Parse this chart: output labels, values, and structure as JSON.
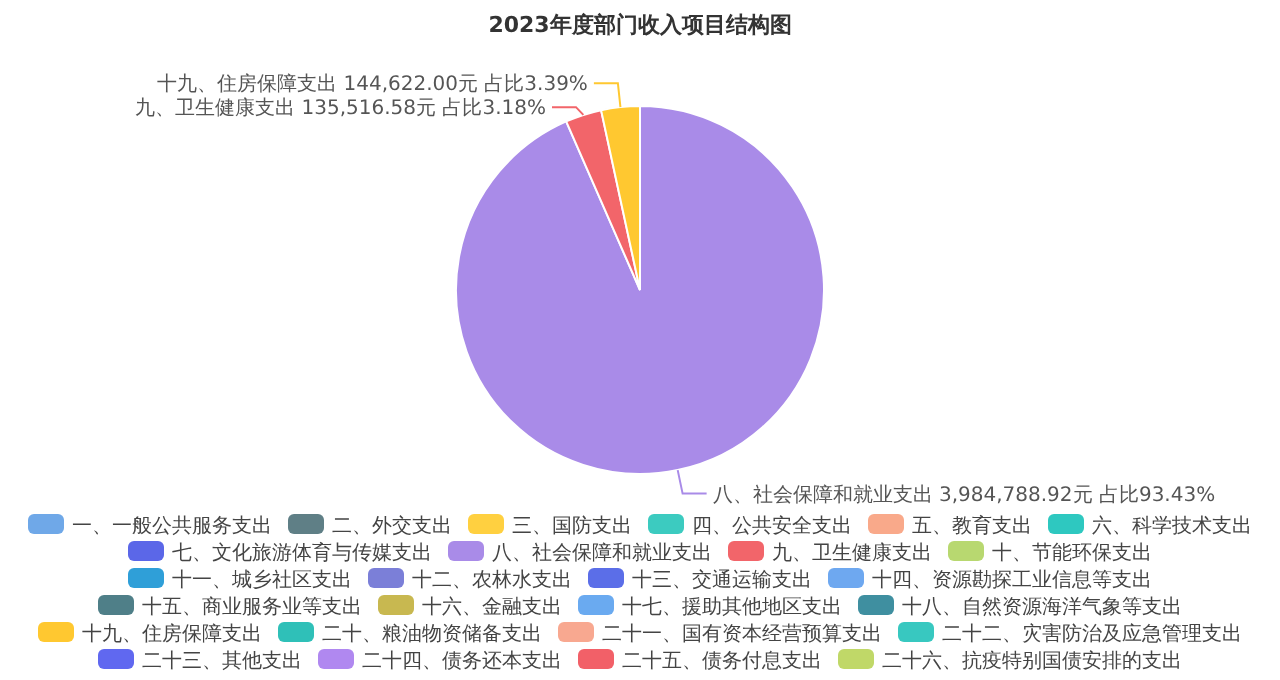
{
  "chart_data": {
    "type": "pie",
    "title": "2023年度部门收入项目结构图",
    "categories": [
      "一、一般公共服务支出",
      "二、外交支出",
      "三、国防支出",
      "四、公共安全支出",
      "五、教育支出",
      "六、科学技术支出",
      "七、文化旅游体育与传媒支出",
      "八、社会保障和就业支出",
      "九、卫生健康支出",
      "十、节能环保支出",
      "十一、城乡社区支出",
      "十二、农林水支出",
      "十三、交通运输支出",
      "十四、资源勘探工业信息等支出",
      "十五、商业服务业等支出",
      "十六、金融支出",
      "十七、援助其他地区支出",
      "十八、自然资源海洋气象等支出",
      "十九、住房保障支出",
      "二十、粮油物资储备支出",
      "二十一、国有资本经营预算支出",
      "二十二、灾害防治及应急管理支出",
      "二十三、其他支出",
      "二十四、债务还本支出",
      "二十五、债务付息支出",
      "二十六、抗疫特别国债安排的支出"
    ],
    "values": [
      0,
      0,
      0,
      0,
      0,
      0,
      0,
      3984788.92,
      135516.58,
      0,
      0,
      0,
      0,
      0,
      0,
      0,
      0,
      0,
      144622.0,
      0,
      0,
      0,
      0,
      0,
      0,
      0
    ],
    "value_labels": [
      null,
      null,
      null,
      null,
      null,
      null,
      null,
      "3,984,788.92元 占比93.43%",
      "135,516.58元 占比3.18%",
      null,
      null,
      null,
      null,
      null,
      null,
      null,
      null,
      null,
      "144,622.00元 占比3.39%",
      null,
      null,
      null,
      null,
      null,
      null,
      null
    ],
    "colors": [
      "#6fa8e8",
      "#5f7f86",
      "#ffd040",
      "#3ccbc0",
      "#f9a98a",
      "#2ec8c0",
      "#5b67e8",
      "#a98be8",
      "#f2656a",
      "#b8d870",
      "#2f9fd8",
      "#7b7fd8",
      "#5b6ee8",
      "#6ea8f0",
      "#4f7f88",
      "#c8b850",
      "#6aaaf0",
      "#3f8fa0",
      "#ffc830",
      "#2fc0b8",
      "#f8a890",
      "#38c8c0",
      "#6068f0",
      "#b088f0",
      "#f26068",
      "#c0d868"
    ],
    "legend": "bottom"
  }
}
